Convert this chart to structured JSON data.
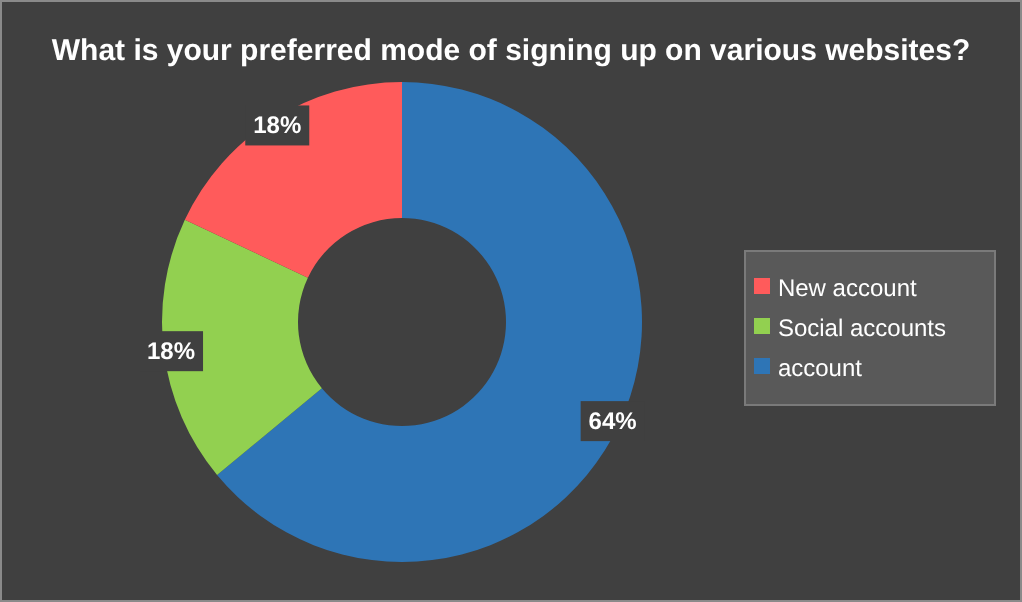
{
  "chart_data": {
    "type": "donut",
    "title": "What is your preferred mode of signing up on various websites?",
    "categories": [
      "account",
      "Social accounts",
      "New account"
    ],
    "values": [
      64,
      18,
      18
    ],
    "colors": [
      "#2e75b6",
      "#92d050",
      "#ff5b5b"
    ],
    "value_labels": [
      "64%",
      "18%",
      "18%"
    ],
    "legend": "right"
  }
}
